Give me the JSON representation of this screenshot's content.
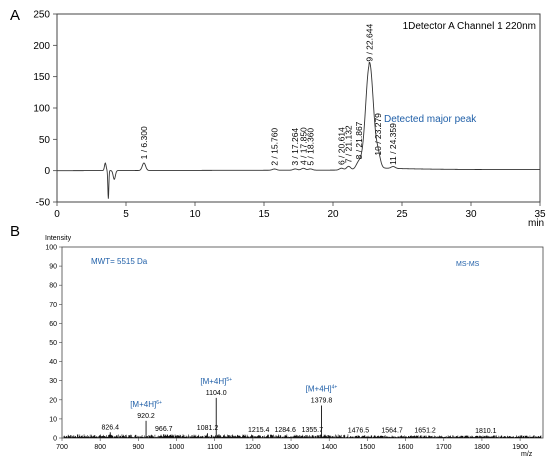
{
  "chart_data": [
    {
      "panel_label": "A",
      "type": "line",
      "channel_label": "1Detector A Channel 1 220nm",
      "xlabel": "min",
      "ylabel": "",
      "xlim": [
        0,
        35
      ],
      "ylim": [
        -50,
        250
      ],
      "x_ticks": [
        0,
        5,
        10,
        15,
        20,
        25,
        30,
        35
      ],
      "y_ticks": [
        -50,
        0,
        50,
        100,
        150,
        200,
        250
      ],
      "annotation": "Detected major peak",
      "peaks": [
        {
          "label": "1 / 6.300",
          "rt": 6.3,
          "height": 12
        },
        {
          "label": "2 / 15.760",
          "rt": 15.76,
          "height": 2
        },
        {
          "label": "3 / 17.264",
          "rt": 17.264,
          "height": 2
        },
        {
          "label": "4 / 17.850",
          "rt": 17.85,
          "height": 3
        },
        {
          "label": "5 / 18.360",
          "rt": 18.36,
          "height": 2
        },
        {
          "label": "6 / 20.614",
          "rt": 20.614,
          "height": 3
        },
        {
          "label": "7 / 21.132",
          "rt": 21.132,
          "height": 6
        },
        {
          "label": "8 / 21.867",
          "rt": 21.867,
          "height": 12
        },
        {
          "label": "9 / 22.644",
          "rt": 22.644,
          "height": 168
        },
        {
          "label": "10 / 23.279",
          "rt": 23.279,
          "height": 18
        },
        {
          "label": "11 / 24.359",
          "rt": 24.359,
          "height": 3
        }
      ]
    },
    {
      "panel_label": "B",
      "type": "bar",
      "ylabel": "Intensity",
      "xlabel": "m/z",
      "xlim": [
        700,
        1960
      ],
      "ylim": [
        0,
        100
      ],
      "x_ticks": [
        700,
        800,
        900,
        1000,
        1100,
        1200,
        1300,
        1400,
        1500,
        1600,
        1700,
        1800,
        1900
      ],
      "y_ticks": [
        0,
        10,
        20,
        30,
        40,
        50,
        60,
        70,
        80,
        90,
        100
      ],
      "mwt_label": "MWT= 5515 Da",
      "mode_label": "MS-MS",
      "peaks": [
        {
          "mz": 826.4,
          "intensity": 3,
          "label": "826.4"
        },
        {
          "mz": 920.2,
          "intensity": 9,
          "label": "920.2",
          "ion_base": "[M+4H]",
          "ion_charge": "6+"
        },
        {
          "mz": 966.7,
          "intensity": 2,
          "label": "966.7"
        },
        {
          "mz": 1081.2,
          "intensity": 2.5,
          "label": "1081.2"
        },
        {
          "mz": 1104.0,
          "intensity": 21,
          "label": "1104.0",
          "ion_base": "[M+4H]",
          "ion_charge": "5+"
        },
        {
          "mz": 1215.4,
          "intensity": 1.5,
          "label": "1215.4"
        },
        {
          "mz": 1284.6,
          "intensity": 1.5,
          "label": "1284.6"
        },
        {
          "mz": 1355.7,
          "intensity": 1.5,
          "label": "1355.7"
        },
        {
          "mz": 1379.8,
          "intensity": 17,
          "label": "1379.8",
          "ion_base": "[M+4H]",
          "ion_charge": "4+"
        },
        {
          "mz": 1476.5,
          "intensity": 1.2,
          "label": "1476.5"
        },
        {
          "mz": 1564.7,
          "intensity": 1.2,
          "label": "1564.7"
        },
        {
          "mz": 1651.2,
          "intensity": 1.2,
          "label": "1651.2"
        },
        {
          "mz": 1810.1,
          "intensity": 1,
          "label": "1810.1"
        }
      ]
    }
  ]
}
